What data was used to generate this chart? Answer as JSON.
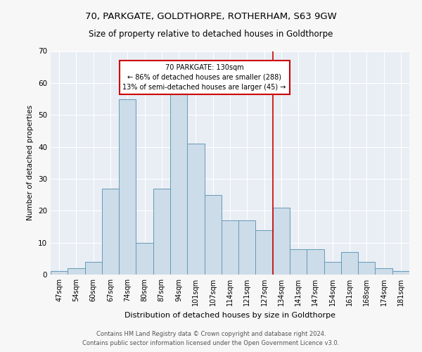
{
  "title1": "70, PARKGATE, GOLDTHORPE, ROTHERHAM, S63 9GW",
  "title2": "Size of property relative to detached houses in Goldthorpe",
  "xlabel": "Distribution of detached houses by size in Goldthorpe",
  "ylabel": "Number of detached properties",
  "categories": [
    "47sqm",
    "54sqm",
    "60sqm",
    "67sqm",
    "74sqm",
    "80sqm",
    "87sqm",
    "94sqm",
    "101sqm",
    "107sqm",
    "114sqm",
    "121sqm",
    "127sqm",
    "134sqm",
    "141sqm",
    "147sqm",
    "154sqm",
    "161sqm",
    "168sqm",
    "174sqm",
    "181sqm"
  ],
  "values": [
    1,
    2,
    4,
    27,
    55,
    10,
    27,
    57,
    41,
    25,
    17,
    17,
    14,
    21,
    8,
    8,
    4,
    7,
    4,
    2,
    1
  ],
  "bar_color": "#ccdce8",
  "bar_edge_color": "#6699bb",
  "vline_color": "#cc0000",
  "annotation_text": "70 PARKGATE: 130sqm\n← 86% of detached houses are smaller (288)\n13% of semi-detached houses are larger (45) →",
  "annotation_box_color": "#cc0000",
  "ylim": [
    0,
    70
  ],
  "yticks": [
    0,
    10,
    20,
    30,
    40,
    50,
    60,
    70
  ],
  "footer1": "Contains HM Land Registry data © Crown copyright and database right 2024.",
  "footer2": "Contains public sector information licensed under the Open Government Licence v3.0.",
  "bg_color": "#f7f7f7",
  "grid_color": "#ffffff",
  "plot_bg_color": "#e8eef4"
}
